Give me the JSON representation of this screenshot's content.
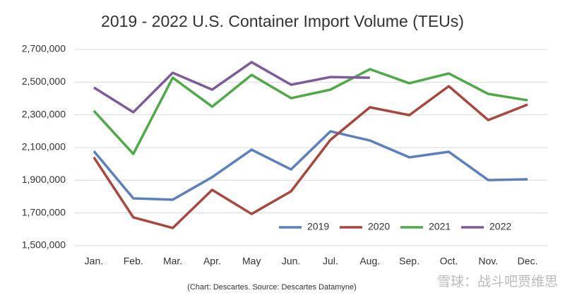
{
  "chart_data": {
    "type": "line",
    "title": "2019 - 2022 U.S. Container Import Volume (TEUs)",
    "source": "(Chart: Descartes. Source: Descartes Datamyne)",
    "watermark": "雪球：战斗吧贾维思",
    "categories": [
      "Jan.",
      "Feb.",
      "Mar.",
      "Apr.",
      "May",
      "Jun.",
      "Jul.",
      "Aug.",
      "Sep.",
      "Oct.",
      "Nov.",
      "Dec."
    ],
    "series": [
      {
        "name": "2019",
        "color": "#5b7fbf",
        "values": [
          2078000,
          1789000,
          1781000,
          1919000,
          2087000,
          1966000,
          2199000,
          2143000,
          2040000,
          2074000,
          1901000,
          1906000
        ]
      },
      {
        "name": "2020",
        "color": "#a9473f",
        "values": [
          2040000,
          1673000,
          1608000,
          1841000,
          1694000,
          1832000,
          2147000,
          2346000,
          2298000,
          2475000,
          2268000,
          2363000
        ]
      },
      {
        "name": "2021",
        "color": "#4eaa46",
        "values": [
          2324000,
          2061000,
          2527000,
          2350000,
          2544000,
          2402000,
          2454000,
          2579000,
          2493000,
          2553000,
          2428000,
          2389000
        ]
      },
      {
        "name": "2022",
        "color": "#7d5a9c",
        "values": [
          2467000,
          2316000,
          2557000,
          2454000,
          2622000,
          2484000,
          2531000,
          2527000,
          null,
          null,
          null,
          null
        ]
      }
    ],
    "ylim": [
      1500000,
      2700000
    ],
    "yticks": [
      {
        "value": 1500000,
        "label": "1,500,000"
      },
      {
        "value": 1700000,
        "label": "1,700,000"
      },
      {
        "value": 1900000,
        "label": "1,900,000"
      },
      {
        "value": 2100000,
        "label": "2,100,000"
      },
      {
        "value": 2300000,
        "label": "2,300,000"
      },
      {
        "value": 2500000,
        "label": "2,500,000"
      },
      {
        "value": 2700000,
        "label": "2,700,000"
      }
    ],
    "grid": true,
    "legend": "bottom-right"
  }
}
